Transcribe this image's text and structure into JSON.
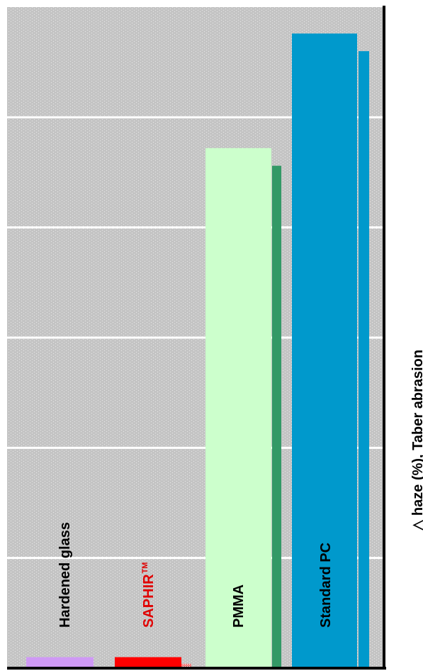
{
  "chart_data": {
    "type": "bar",
    "orientation": "horizontal",
    "title": "",
    "xlabel": "△   haze (%), Taber abrasion",
    "ylabel": "",
    "categories": [
      "Hardened glass",
      "SAPHIR",
      "PMMA",
      "Standard PC"
    ],
    "category_label_superscripts": [
      "",
      "TM",
      "",
      ""
    ],
    "series": [
      {
        "values": [
          0.5,
          0.5,
          23.6,
          28.8
        ],
        "colors": [
          "#cf99f5",
          "#ff0000",
          "#ccffcc",
          "#0099cc"
        ]
      },
      {
        "values": [
          0,
          0.2,
          22.8,
          28.0
        ],
        "colors": [
          "#cf99f5",
          "#f08080",
          "#339966",
          "#0099cc"
        ]
      }
    ],
    "xlim": [
      0,
      30
    ],
    "grid": true,
    "legend": "none",
    "label_colors": [
      "#000000",
      "#e00000",
      "#000000",
      "#000000"
    ]
  }
}
